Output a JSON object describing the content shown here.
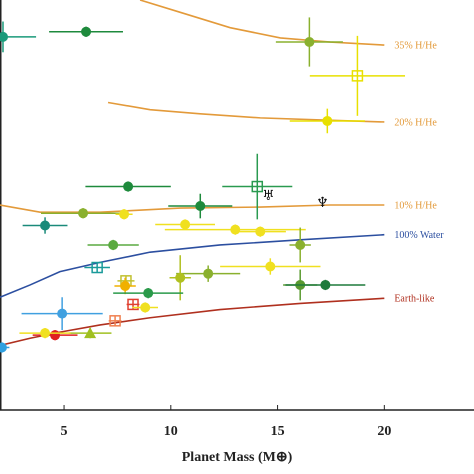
{
  "chart_data": {
    "type": "scatter",
    "xlabel": "Planet Mass (M⊕)",
    "xlim": [
      2,
      24.2
    ],
    "ylim": [
      1,
      5
    ],
    "xticks": [
      5,
      10,
      15,
      20
    ],
    "lines": [
      {
        "name": "35% H/He",
        "color": "#e39a3a",
        "x": [
          8.56,
          10.44,
          12.78,
          15.13,
          17.47,
          20.0
        ],
        "y": [
          5.0,
          4.88,
          4.73,
          4.63,
          4.59,
          4.56
        ]
      },
      {
        "name": "20% H/He",
        "color": "#e39a3a",
        "x": [
          7.06,
          9.03,
          11.38,
          14.19,
          17.0,
          20.0
        ],
        "y": [
          4.0,
          3.93,
          3.89,
          3.85,
          3.83,
          3.81
        ]
      },
      {
        "name": "10% H/He",
        "color": "#e39a3a",
        "x": [
          2,
          3.88,
          6.69,
          10.44,
          14.19,
          17.47,
          20
        ],
        "y": [
          3.0,
          2.93,
          2.93,
          2.97,
          2.98,
          3.0,
          3.0
        ]
      },
      {
        "name": "100% Water",
        "color": "#2c4fa0",
        "x": [
          2,
          3.41,
          4.81,
          6.69,
          9.03,
          12.31,
          16.06,
          20
        ],
        "y": [
          2.1,
          2.22,
          2.35,
          2.44,
          2.54,
          2.61,
          2.66,
          2.71
        ]
      },
      {
        "name": "Earth-like",
        "color": "#b0301f",
        "x": [
          2,
          3.41,
          4.81,
          6.69,
          9.03,
          12.31,
          16.06,
          20
        ],
        "y": [
          1.63,
          1.7,
          1.76,
          1.83,
          1.9,
          1.98,
          2.04,
          2.09
        ]
      }
    ],
    "points": [
      {
        "x": 2.14,
        "y": 4.64,
        "xerr": 1.55,
        "yerr": 0.15,
        "color": "#1a9a7a",
        "marker": "circle"
      },
      {
        "x": 6.03,
        "y": 4.69,
        "xerr": 1.73,
        "yerr": 0.05,
        "color": "#1e8a3c",
        "marker": "circle"
      },
      {
        "x": 16.49,
        "y": 4.59,
        "xerr": 1.57,
        "yerr": 0.24,
        "color": "#8ab02e",
        "marker": "circle"
      },
      {
        "x": 18.74,
        "y": 4.26,
        "xerr": 2.23,
        "yerr": 0.39,
        "color": "#e8e000",
        "marker": "square"
      },
      {
        "x": 17.33,
        "y": 3.82,
        "xerr": 1.76,
        "yerr": 0.12,
        "color": "#e8e000",
        "marker": "circle"
      },
      {
        "x": 8.0,
        "y": 3.18,
        "xerr": 2.0,
        "yerr": 0.05,
        "color": "#1e8a3c",
        "marker": "circle"
      },
      {
        "x": 14.05,
        "y": 3.18,
        "xerr": 1.64,
        "yerr": 0.32,
        "color": "#2a9a50",
        "marker": "square"
      },
      {
        "x": 5.89,
        "y": 2.92,
        "xerr": 1.97,
        "yerr": 0.05,
        "color": "#8ab02e",
        "marker": "circle"
      },
      {
        "x": 11.38,
        "y": 2.99,
        "xerr": 1.5,
        "yerr": 0.12,
        "color": "#1e8a3c",
        "marker": "circle"
      },
      {
        "x": 7.81,
        "y": 2.91,
        "xerr": 0.4,
        "yerr": 0.05,
        "color": "#f0e020",
        "marker": "circle"
      },
      {
        "x": 4.11,
        "y": 2.8,
        "xerr": 1.05,
        "yerr": 0.08,
        "color": "#1a8a7a",
        "marker": "circle"
      },
      {
        "x": 10.67,
        "y": 2.81,
        "xerr": 1.4,
        "yerr": 0.05,
        "color": "#f0e020",
        "marker": "circle"
      },
      {
        "x": 13.02,
        "y": 2.76,
        "xerr": 3.3,
        "yerr": 0.05,
        "color": "#f0e020",
        "marker": "circle"
      },
      {
        "x": 14.19,
        "y": 2.74,
        "xerr": 1.2,
        "yerr": 0.05,
        "color": "#f0e020",
        "marker": "circle"
      },
      {
        "x": 7.3,
        "y": 2.61,
        "xerr": 1.2,
        "yerr": 0.05,
        "color": "#5aaa40",
        "marker": "circle"
      },
      {
        "x": 16.06,
        "y": 2.61,
        "xerr": 0.5,
        "yerr": 0.17,
        "color": "#8ab02e",
        "marker": "circle"
      },
      {
        "x": 6.55,
        "y": 2.39,
        "xerr": 0.6,
        "yerr": 0.05,
        "color": "#1a9a9a",
        "marker": "square"
      },
      {
        "x": 14.66,
        "y": 2.4,
        "xerr": 2.35,
        "yerr": 0.08,
        "color": "#f0e020",
        "marker": "circle"
      },
      {
        "x": 11.75,
        "y": 2.33,
        "xerr": 1.5,
        "yerr": 0.08,
        "color": "#8ab02e",
        "marker": "circle"
      },
      {
        "x": 10.44,
        "y": 2.29,
        "xerr": 0.5,
        "yerr": 0.22,
        "color": "#b0c020",
        "marker": "circle"
      },
      {
        "x": 7.9,
        "y": 2.26,
        "xerr": 0.4,
        "yerr": 0.05,
        "color": "#c0c030",
        "marker": "square"
      },
      {
        "x": 7.86,
        "y": 2.21,
        "xerr": 0.5,
        "yerr": 0.08,
        "color": "#f0b000",
        "marker": "circle"
      },
      {
        "x": 8.94,
        "y": 2.14,
        "xerr": 1.64,
        "yerr": 0.05,
        "color": "#2a9a4a",
        "marker": "circle"
      },
      {
        "x": 16.06,
        "y": 2.22,
        "xerr": 0.8,
        "yerr": 0.15,
        "color": "#5a9a30",
        "marker": "circle"
      },
      {
        "x": 17.24,
        "y": 2.22,
        "xerr": 1.87,
        "yerr": 0.05,
        "color": "#1e7a3c",
        "marker": "circle"
      },
      {
        "x": 8.23,
        "y": 2.03,
        "xerr": 0.3,
        "yerr": 0.05,
        "color": "#e04030",
        "marker": "square"
      },
      {
        "x": 8.8,
        "y": 2.0,
        "xerr": 0.6,
        "yerr": 0.05,
        "color": "#f0e020",
        "marker": "circle"
      },
      {
        "x": 4.91,
        "y": 1.94,
        "xerr": 1.9,
        "yerr": 0.16,
        "color": "#40a0e0",
        "marker": "circle"
      },
      {
        "x": 7.39,
        "y": 1.87,
        "xerr": 0.3,
        "yerr": 0.05,
        "color": "#f08050",
        "marker": "square"
      },
      {
        "x": 4.58,
        "y": 1.73,
        "xerr": 1.05,
        "yerr": 0.05,
        "color": "#e02020",
        "marker": "circle"
      },
      {
        "x": 6.22,
        "y": 1.75,
        "xerr": 1.0,
        "yerr": 0.05,
        "color": "#a0c020",
        "marker": "triangle"
      },
      {
        "x": 4.11,
        "y": 1.75,
        "xerr": 1.2,
        "yerr": 0.05,
        "color": "#f0e020",
        "marker": "circle"
      },
      {
        "x": 2.09,
        "y": 1.61,
        "xerr": 0.35,
        "yerr": 0.05,
        "color": "#30a0e0",
        "marker": "circle"
      }
    ],
    "annotations": [
      {
        "text": "♅",
        "x": 14.57,
        "y": 3.09
      },
      {
        "text": "♆",
        "x": 17.1,
        "y": 3.02
      }
    ]
  }
}
